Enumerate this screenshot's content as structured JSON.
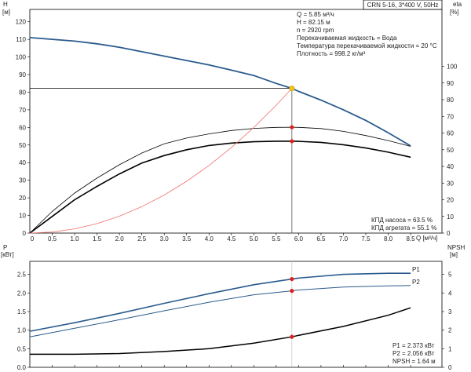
{
  "chart_data": [
    {
      "type": "line",
      "title": "CRN 5-16, 3*400 V, 50Hz",
      "y_left_label": "H",
      "y_left_unit": "[м]",
      "y_right_label": "eta",
      "y_right_unit": "[%]",
      "xlabel": "Q [м³/ч]",
      "x_ticks": [
        "0.5",
        "1.0",
        "1.5",
        "2.0",
        "2.5",
        "3.0",
        "3.5",
        "4.0",
        "4.5",
        "5.0",
        "5.5",
        "6.0",
        "6.5",
        "7.0",
        "7.5",
        "8.0",
        "8.5"
      ],
      "y_left_ticks": [
        "0",
        "10",
        "20",
        "30",
        "40",
        "50",
        "60",
        "70",
        "80",
        "90",
        "100",
        "110",
        "120"
      ],
      "y_right_ticks": [
        "0",
        "10",
        "20",
        "30",
        "40",
        "50",
        "60",
        "70",
        "80",
        "90",
        "100"
      ],
      "xlim": [
        0,
        9.2
      ],
      "ylim": [
        0,
        127
      ],
      "y_right_zero_label": "0",
      "series": [
        {
          "id": "head",
          "color": "#2a5b8c",
          "axis": "left",
          "x": [
            0,
            0.5,
            1,
            1.5,
            2,
            2.5,
            3,
            3.5,
            4,
            4.5,
            5,
            5.5,
            5.85,
            6,
            6.5,
            7,
            7.5,
            8,
            8.5
          ],
          "y": [
            111,
            110,
            109,
            107.5,
            105.5,
            103,
            100.5,
            98,
            95.5,
            92.5,
            89.5,
            85,
            82.15,
            80.5,
            75.5,
            70,
            64,
            57,
            49.5
          ]
        },
        {
          "id": "eta-pump",
          "color": "#000000",
          "axis": "right",
          "x": [
            0,
            0.5,
            1,
            1.5,
            2,
            2.5,
            3,
            3.5,
            4,
            4.5,
            5,
            5.5,
            5.85,
            6,
            6.5,
            7,
            7.5,
            8,
            8.5
          ],
          "y": [
            0,
            13,
            24,
            33,
            41,
            48,
            53.5,
            57,
            59.5,
            61.5,
            62.8,
            63.4,
            63.5,
            63.4,
            62.7,
            61,
            58.5,
            55.5,
            52
          ]
        },
        {
          "id": "eta-unit",
          "color": "#000000",
          "axis": "right",
          "x": [
            0,
            0.5,
            1,
            1.5,
            2,
            2.5,
            3,
            3.5,
            4,
            4.5,
            5,
            5.5,
            5.85,
            6,
            6.5,
            7,
            7.5,
            8,
            8.5
          ],
          "y": [
            0,
            10,
            20,
            28,
            35.5,
            42,
            46.5,
            50,
            52.5,
            54,
            54.8,
            55.1,
            55.1,
            55,
            54.4,
            53,
            51,
            48.5,
            45.5
          ]
        },
        {
          "id": "system",
          "color": "#f07070",
          "axis": "left",
          "x": [
            0,
            0.5,
            1,
            1.5,
            2,
            2.5,
            3,
            3.5,
            4,
            4.5,
            5,
            5.5,
            5.85
          ],
          "y": [
            0,
            0.6,
            2.4,
            5.4,
            9.6,
            15,
            21.6,
            29.4,
            38.4,
            48.6,
            60,
            72.6,
            82.15
          ]
        }
      ],
      "operating_point": {
        "q": 5.85,
        "h": 82.15,
        "eta_pump": 63.5,
        "eta_unit": 55.1
      },
      "info_lines": [
        "Q = 5.85 м³/ч",
        "H = 82.15 м",
        "n = 2920 rpm",
        "Перекачиваемая жидкость = Вода",
        "Температура перекачиваемой жидкости = 20 °C",
        "Плотность = 998.2 кг/м³"
      ],
      "eff_lines": [
        "КПД насоса = 63.5 %",
        "КПД агрегата = 55.1 %"
      ]
    },
    {
      "type": "line",
      "y_left_label": "P",
      "y_left_unit": "[кВт]",
      "y_right_label": "NPSH",
      "y_right_unit": "[м]",
      "y_left_ticks": [
        "0.0",
        "0.5",
        "1.0",
        "1.5",
        "2.0",
        "2.5"
      ],
      "y_right_ticks": [
        "0",
        "1",
        "2",
        "3",
        "4",
        "5"
      ],
      "xlim": [
        0,
        9.2
      ],
      "ylim": [
        0,
        2.85
      ],
      "series": [
        {
          "id": "p1",
          "name": "P1",
          "color": "#2a5b8c",
          "axis": "left",
          "x": [
            0,
            1,
            2,
            3,
            4,
            5,
            5.85,
            6,
            7,
            8,
            8.5
          ],
          "y": [
            0.97,
            1.2,
            1.45,
            1.72,
            1.98,
            2.22,
            2.373,
            2.4,
            2.5,
            2.53,
            2.53
          ]
        },
        {
          "id": "p2",
          "name": "P2",
          "color": "#2a5b8c",
          "axis": "left",
          "x": [
            0,
            1,
            2,
            3,
            4,
            5,
            5.85,
            6,
            7,
            8,
            8.5
          ],
          "y": [
            0.82,
            1.05,
            1.28,
            1.52,
            1.75,
            1.95,
            2.056,
            2.08,
            2.16,
            2.19,
            2.2
          ]
        },
        {
          "id": "npsh",
          "name": "NPSH",
          "color": "#000000",
          "axis": "right",
          "x": [
            0,
            1,
            2,
            3,
            4,
            5,
            5.85,
            6,
            7,
            8,
            8.5
          ],
          "y": [
            0.7,
            0.7,
            0.74,
            0.85,
            1,
            1.3,
            1.64,
            1.72,
            2.2,
            2.8,
            3.2
          ]
        }
      ],
      "operating_point": {
        "q": 5.85,
        "p1": 2.373,
        "p2": 2.056,
        "npsh": 1.64
      },
      "value_lines": [
        "P1 = 2.373 кВт",
        "P2 = 2.056 кВт",
        "NPSH = 1.64 м"
      ]
    }
  ]
}
